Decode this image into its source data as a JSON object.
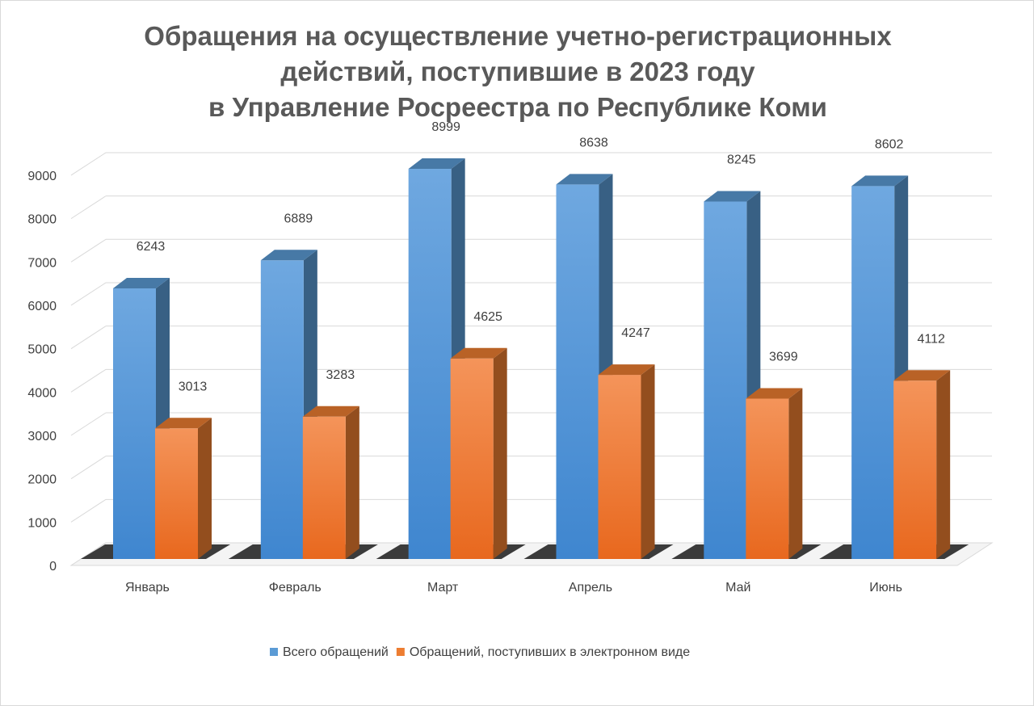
{
  "chart_data": {
    "type": "bar",
    "title_lines": [
      "Обращения на осуществление учетно-регистрационных",
      "действий, поступившие в 2023 году",
      "в Управление Росреестра по Республике Коми"
    ],
    "categories": [
      "Январь",
      "Февраль",
      "Март",
      "Апрель",
      "Май",
      "Июнь"
    ],
    "series": [
      {
        "name": "Всего обращений",
        "values": [
          6243,
          6889,
          8999,
          8638,
          8245,
          8602
        ],
        "color": "#5B9BD5"
      },
      {
        "name": "Обращений, поступивших в электронном виде",
        "values": [
          3013,
          3283,
          4625,
          4247,
          3699,
          4112
        ],
        "color": "#ED7D31"
      }
    ],
    "y_ticks": [
      "0",
      "1000",
      "2000",
      "3000",
      "4000",
      "5000",
      "6000",
      "7000",
      "8000",
      "9000"
    ],
    "ylim": [
      0,
      9000
    ],
    "grid": true,
    "legend_position": "bottom",
    "style": "3d-clustered-column"
  }
}
